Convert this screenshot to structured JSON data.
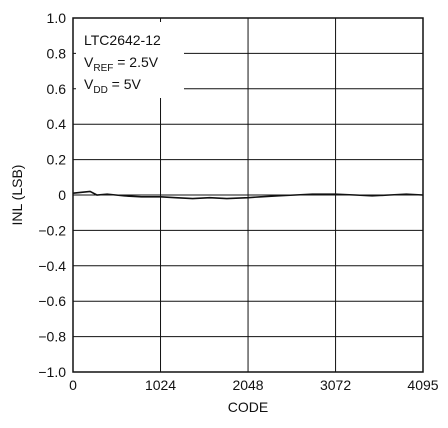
{
  "chart_data": {
    "type": "line",
    "title": "",
    "xlabel": "CODE",
    "ylabel": "INL (LSB)",
    "xlim": [
      0,
      4095
    ],
    "ylim": [
      -1.0,
      1.0
    ],
    "grid": true,
    "x_ticks": [
      0,
      1024,
      2048,
      3072,
      4095
    ],
    "x_tick_labels": [
      "0",
      "1024",
      "2048",
      "3072",
      "4095"
    ],
    "y_ticks": [
      1.0,
      0.8,
      0.6,
      0.4,
      0.2,
      0,
      -0.2,
      -0.4,
      -0.6,
      -0.8,
      -1.0
    ],
    "y_tick_labels": [
      "1.0",
      "0.8",
      "0.6",
      "0.4",
      "0.2",
      "0",
      "−0.2",
      "−0.4",
      "−0.6",
      "−0.8",
      "−1.0"
    ],
    "annotation": {
      "line1": "LTC2642-12",
      "line2_main": "V",
      "line2_sub": "REF",
      "line2_rest": " = 2.5V",
      "line3_main": "V",
      "line3_sub": "DD",
      "line3_rest": " = 5V"
    },
    "series": [
      {
        "x": [
          0,
          100,
          200,
          280,
          400,
          600,
          800,
          1024,
          1200,
          1400,
          1600,
          1800,
          2048,
          2200,
          2400,
          2600,
          2800,
          3072,
          3300,
          3500,
          3700,
          3900,
          4095
        ],
        "y": [
          0.01,
          0.015,
          0.02,
          0.0,
          0.005,
          -0.005,
          -0.01,
          -0.01,
          -0.015,
          -0.02,
          -0.015,
          -0.02,
          -0.015,
          -0.01,
          -0.005,
          0.0,
          0.005,
          0.005,
          0.0,
          -0.005,
          0.0,
          0.005,
          0.0
        ]
      }
    ],
    "colors": {
      "line": "#111111",
      "grid": "#111111",
      "background": "#ffffff"
    }
  }
}
